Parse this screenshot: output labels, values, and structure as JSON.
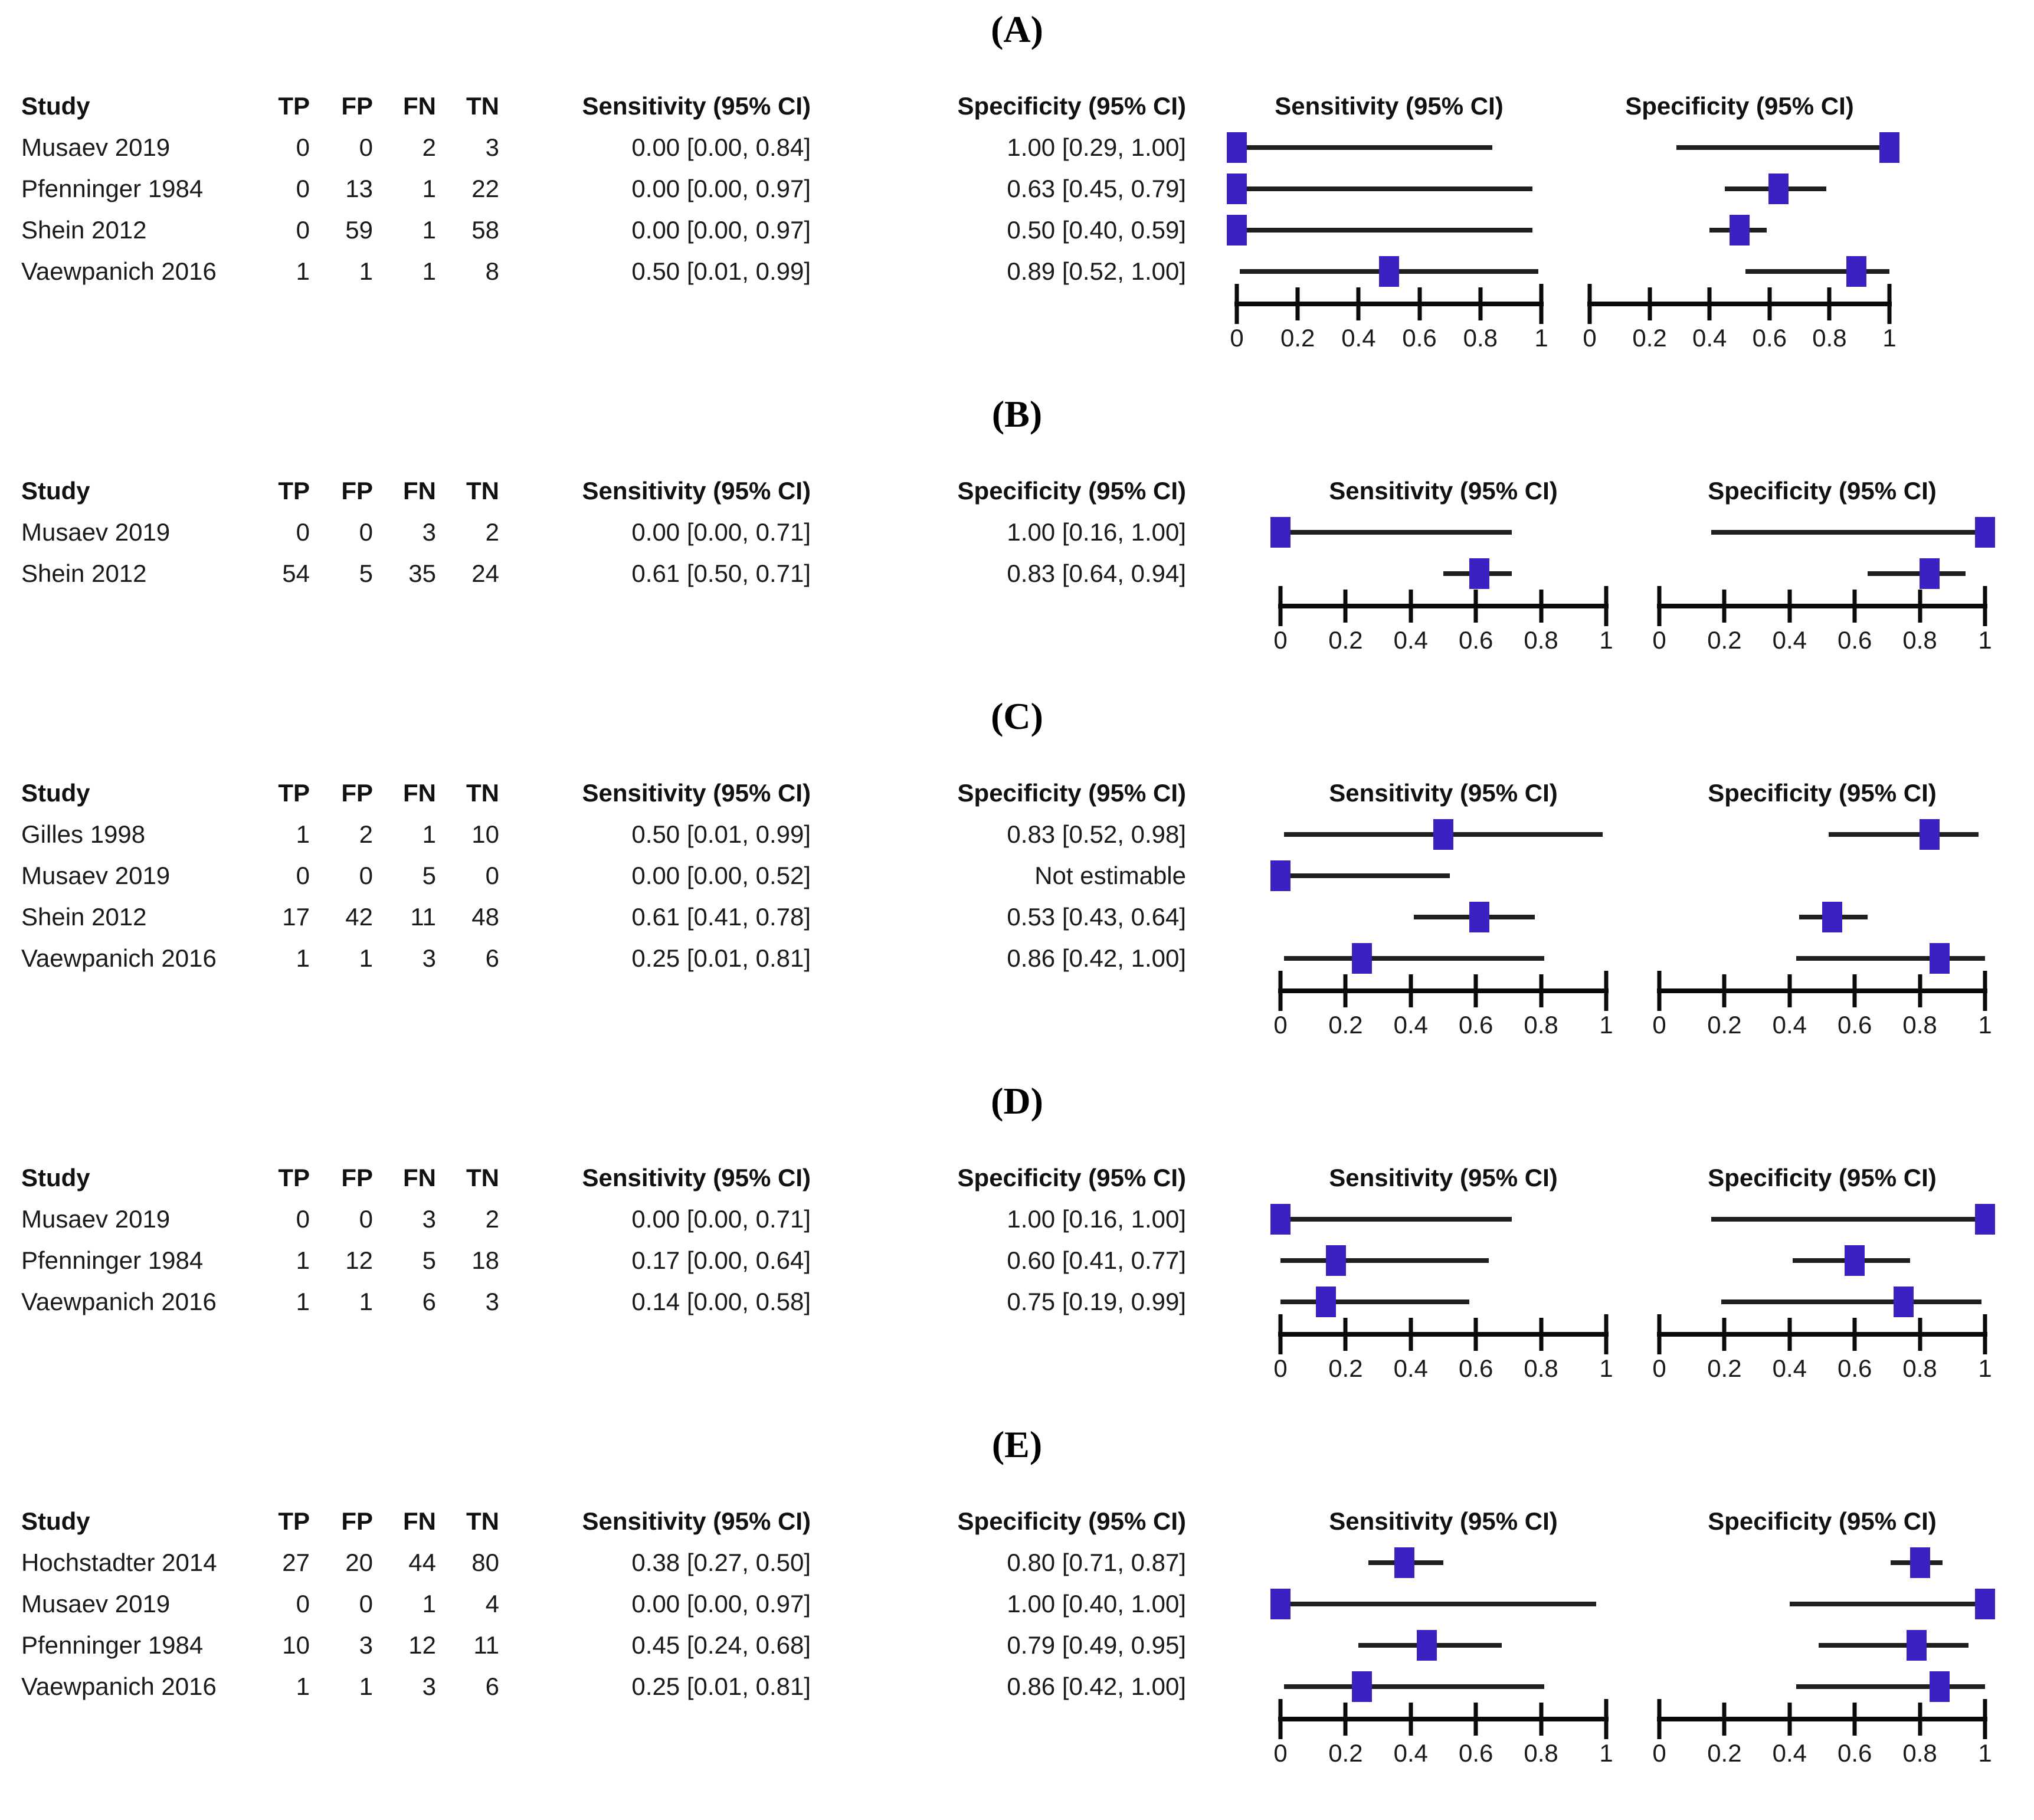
{
  "styles": {
    "marker_color": "#3b21c2",
    "ci_line_color": "#1f1f1f",
    "axis_color": "#0a0a0a",
    "text_color": "#1a1a1a",
    "background": "#ffffff"
  },
  "table_headers": {
    "study": "Study",
    "tp": "TP",
    "fp": "FP",
    "fn": "FN",
    "tn": "TN",
    "sensitivity": "Sensitivity (95% CI)",
    "specificity": "Specificity (95% CI)"
  },
  "plot_headers": {
    "sensitivity": "Sensitivity (95% CI)",
    "specificity": "Specificity (95% CI)"
  },
  "axis": {
    "min": 0,
    "max": 1,
    "ticks": [
      0,
      0.2,
      0.4,
      0.6,
      0.8,
      1
    ],
    "tick_labels": [
      "0",
      "0.2",
      "0.4",
      "0.6",
      "0.8",
      "1"
    ]
  },
  "chart_data": [
    {
      "type": "forest",
      "panel": "(A)",
      "layout": "narrow",
      "legend_position": "none",
      "grid": false,
      "rows": [
        {
          "study": "Musaev 2019",
          "tp": 0,
          "fp": 0,
          "fn": 2,
          "tn": 3,
          "sensitivity_text": "0.00 [0.00, 0.84]",
          "specificity_text": "1.00 [0.29, 1.00]",
          "sensitivity": {
            "est": 0.0,
            "lo": 0.0,
            "hi": 0.84
          },
          "specificity": {
            "est": 1.0,
            "lo": 0.29,
            "hi": 1.0
          }
        },
        {
          "study": "Pfenninger 1984",
          "tp": 0,
          "fp": 13,
          "fn": 1,
          "tn": 22,
          "sensitivity_text": "0.00 [0.00, 0.97]",
          "specificity_text": "0.63 [0.45, 0.79]",
          "sensitivity": {
            "est": 0.0,
            "lo": 0.0,
            "hi": 0.97
          },
          "specificity": {
            "est": 0.63,
            "lo": 0.45,
            "hi": 0.79
          }
        },
        {
          "study": "Shein 2012",
          "tp": 0,
          "fp": 59,
          "fn": 1,
          "tn": 58,
          "sensitivity_text": "0.00 [0.00, 0.97]",
          "specificity_text": "0.50 [0.40, 0.59]",
          "sensitivity": {
            "est": 0.0,
            "lo": 0.0,
            "hi": 0.97
          },
          "specificity": {
            "est": 0.5,
            "lo": 0.4,
            "hi": 0.59
          }
        },
        {
          "study": "Vaewpanich 2016",
          "tp": 1,
          "fp": 1,
          "fn": 1,
          "tn": 8,
          "sensitivity_text": "0.50 [0.01, 0.99]",
          "specificity_text": "0.89 [0.52, 1.00]",
          "sensitivity": {
            "est": 0.5,
            "lo": 0.01,
            "hi": 0.99
          },
          "specificity": {
            "est": 0.89,
            "lo": 0.52,
            "hi": 1.0
          }
        }
      ]
    },
    {
      "type": "forest",
      "panel": "(B)",
      "layout": "wide",
      "legend_position": "none",
      "grid": false,
      "rows": [
        {
          "study": "Musaev 2019",
          "tp": 0,
          "fp": 0,
          "fn": 3,
          "tn": 2,
          "sensitivity_text": "0.00 [0.00, 0.71]",
          "specificity_text": "1.00 [0.16, 1.00]",
          "sensitivity": {
            "est": 0.0,
            "lo": 0.0,
            "hi": 0.71
          },
          "specificity": {
            "est": 1.0,
            "lo": 0.16,
            "hi": 1.0
          }
        },
        {
          "study": "Shein 2012",
          "tp": 54,
          "fp": 5,
          "fn": 35,
          "tn": 24,
          "sensitivity_text": "0.61 [0.50, 0.71]",
          "specificity_text": "0.83 [0.64, 0.94]",
          "sensitivity": {
            "est": 0.61,
            "lo": 0.5,
            "hi": 0.71
          },
          "specificity": {
            "est": 0.83,
            "lo": 0.64,
            "hi": 0.94
          }
        }
      ]
    },
    {
      "type": "forest",
      "panel": "(C)",
      "layout": "wide",
      "legend_position": "none",
      "grid": false,
      "rows": [
        {
          "study": "Gilles 1998",
          "tp": 1,
          "fp": 2,
          "fn": 1,
          "tn": 10,
          "sensitivity_text": "0.50 [0.01, 0.99]",
          "specificity_text": "0.83 [0.52, 0.98]",
          "sensitivity": {
            "est": 0.5,
            "lo": 0.01,
            "hi": 0.99
          },
          "specificity": {
            "est": 0.83,
            "lo": 0.52,
            "hi": 0.98
          }
        },
        {
          "study": "Musaev 2019",
          "tp": 0,
          "fp": 0,
          "fn": 5,
          "tn": 0,
          "sensitivity_text": "0.00 [0.00, 0.52]",
          "specificity_text": "Not estimable",
          "sensitivity": {
            "est": 0.0,
            "lo": 0.0,
            "hi": 0.52
          },
          "specificity": null
        },
        {
          "study": "Shein 2012",
          "tp": 17,
          "fp": 42,
          "fn": 11,
          "tn": 48,
          "sensitivity_text": "0.61 [0.41, 0.78]",
          "specificity_text": "0.53 [0.43, 0.64]",
          "sensitivity": {
            "est": 0.61,
            "lo": 0.41,
            "hi": 0.78
          },
          "specificity": {
            "est": 0.53,
            "lo": 0.43,
            "hi": 0.64
          }
        },
        {
          "study": "Vaewpanich 2016",
          "tp": 1,
          "fp": 1,
          "fn": 3,
          "tn": 6,
          "sensitivity_text": "0.25 [0.01, 0.81]",
          "specificity_text": "0.86 [0.42, 1.00]",
          "sensitivity": {
            "est": 0.25,
            "lo": 0.01,
            "hi": 0.81
          },
          "specificity": {
            "est": 0.86,
            "lo": 0.42,
            "hi": 1.0
          }
        }
      ]
    },
    {
      "type": "forest",
      "panel": "(D)",
      "layout": "wide",
      "legend_position": "none",
      "grid": false,
      "rows": [
        {
          "study": "Musaev 2019",
          "tp": 0,
          "fp": 0,
          "fn": 3,
          "tn": 2,
          "sensitivity_text": "0.00 [0.00, 0.71]",
          "specificity_text": "1.00 [0.16, 1.00]",
          "sensitivity": {
            "est": 0.0,
            "lo": 0.0,
            "hi": 0.71
          },
          "specificity": {
            "est": 1.0,
            "lo": 0.16,
            "hi": 1.0
          }
        },
        {
          "study": "Pfenninger 1984",
          "tp": 1,
          "fp": 12,
          "fn": 5,
          "tn": 18,
          "sensitivity_text": "0.17 [0.00, 0.64]",
          "specificity_text": "0.60 [0.41, 0.77]",
          "sensitivity": {
            "est": 0.17,
            "lo": 0.0,
            "hi": 0.64
          },
          "specificity": {
            "est": 0.6,
            "lo": 0.41,
            "hi": 0.77
          }
        },
        {
          "study": "Vaewpanich 2016",
          "tp": 1,
          "fp": 1,
          "fn": 6,
          "tn": 3,
          "sensitivity_text": "0.14 [0.00, 0.58]",
          "specificity_text": "0.75 [0.19, 0.99]",
          "sensitivity": {
            "est": 0.14,
            "lo": 0.0,
            "hi": 0.58
          },
          "specificity": {
            "est": 0.75,
            "lo": 0.19,
            "hi": 0.99
          }
        }
      ]
    },
    {
      "type": "forest",
      "panel": "(E)",
      "layout": "wide",
      "legend_position": "none",
      "grid": false,
      "rows": [
        {
          "study": "Hochstadter 2014",
          "tp": 27,
          "fp": 20,
          "fn": 44,
          "tn": 80,
          "sensitivity_text": "0.38 [0.27, 0.50]",
          "specificity_text": "0.80 [0.71, 0.87]",
          "sensitivity": {
            "est": 0.38,
            "lo": 0.27,
            "hi": 0.5
          },
          "specificity": {
            "est": 0.8,
            "lo": 0.71,
            "hi": 0.87
          }
        },
        {
          "study": "Musaev 2019",
          "tp": 0,
          "fp": 0,
          "fn": 1,
          "tn": 4,
          "sensitivity_text": "0.00 [0.00, 0.97]",
          "specificity_text": "1.00 [0.40, 1.00]",
          "sensitivity": {
            "est": 0.0,
            "lo": 0.0,
            "hi": 0.97
          },
          "specificity": {
            "est": 1.0,
            "lo": 0.4,
            "hi": 1.0
          }
        },
        {
          "study": "Pfenninger 1984",
          "tp": 10,
          "fp": 3,
          "fn": 12,
          "tn": 11,
          "sensitivity_text": "0.45 [0.24, 0.68]",
          "specificity_text": "0.79 [0.49, 0.95]",
          "sensitivity": {
            "est": 0.45,
            "lo": 0.24,
            "hi": 0.68
          },
          "specificity": {
            "est": 0.79,
            "lo": 0.49,
            "hi": 0.95
          }
        },
        {
          "study": "Vaewpanich 2016",
          "tp": 1,
          "fp": 1,
          "fn": 3,
          "tn": 6,
          "sensitivity_text": "0.25 [0.01, 0.81]",
          "specificity_text": "0.86 [0.42, 1.00]",
          "sensitivity": {
            "est": 0.25,
            "lo": 0.01,
            "hi": 0.81
          },
          "specificity": {
            "est": 0.86,
            "lo": 0.42,
            "hi": 1.0
          }
        }
      ]
    }
  ]
}
